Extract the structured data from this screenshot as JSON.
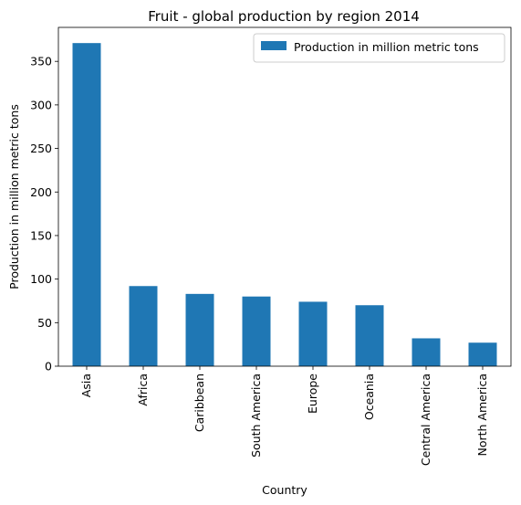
{
  "chart_data": {
    "type": "bar",
    "title": "Fruit - global production by region 2014",
    "xlabel": "Country",
    "ylabel": "Production in million metric tons",
    "categories": [
      "Asia",
      "Africa",
      "Caribbean",
      "South America",
      "Europe",
      "Oceania",
      "Central America",
      "North America"
    ],
    "series": [
      {
        "name": "Production in million metric tons",
        "color": "#1f77b4",
        "values": [
          371,
          92,
          83,
          80,
          74,
          70,
          32,
          27
        ]
      }
    ],
    "ylim": [
      0,
      389
    ],
    "yticks": [
      0,
      50,
      100,
      150,
      200,
      250,
      300,
      350
    ],
    "grid": false,
    "legend": "top-right"
  }
}
